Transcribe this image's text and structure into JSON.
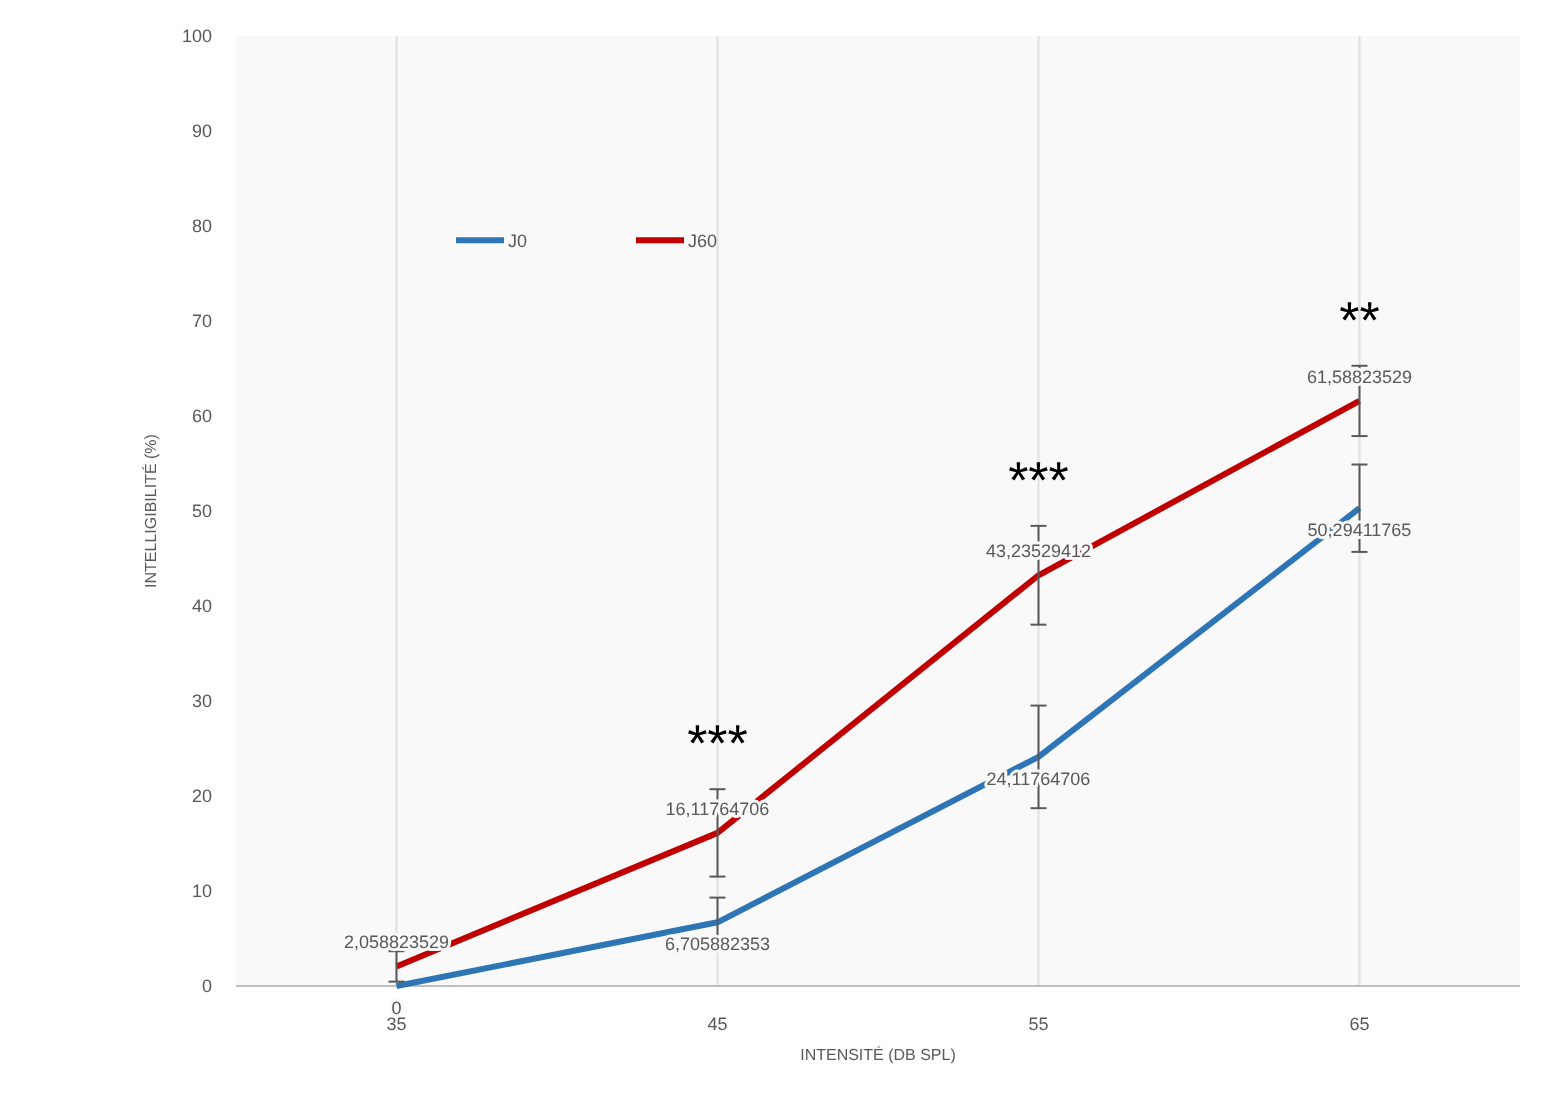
{
  "chart_data": {
    "type": "line",
    "xlabel": "INTENSITÉ  (DB SPL)",
    "ylabel": "INTELLIGIBILITÉ (%)",
    "categories": [
      "35",
      "45",
      "55",
      "65"
    ],
    "series": [
      {
        "name": "J0",
        "color": "#2e75b6",
        "values": [
          0,
          6.705882353,
          24.11764706,
          50.29411765
        ],
        "errors": [
          null,
          2.6,
          5.4,
          4.6
        ],
        "value_labels": [
          "0",
          "6,705882353",
          "24,11764706",
          "50,29411765"
        ]
      },
      {
        "name": "J60",
        "color": "#c00000",
        "values": [
          2.058823529,
          16.11764706,
          43.23529412,
          61.58823529
        ],
        "errors": [
          1.6,
          4.6,
          5.2,
          3.7
        ],
        "value_labels": [
          "2,058823529",
          "16,11764706",
          "43,23529412",
          "61,58823529"
        ]
      }
    ],
    "ylim": [
      0,
      100
    ],
    "yticks": [
      0,
      10,
      20,
      30,
      40,
      50,
      60,
      70,
      80,
      90,
      100
    ],
    "grid": "x",
    "legend": "top left",
    "marker": "none",
    "annotations": [
      "***",
      "***",
      "**"
    ]
  }
}
